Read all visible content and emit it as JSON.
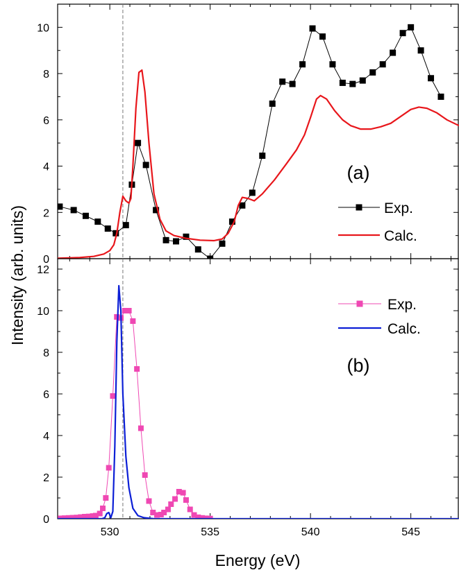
{
  "xlabel": "Energy (eV)",
  "ylabel": "Intensity (arb. units)",
  "chart_data": [
    {
      "type": "line",
      "panel_label": "(a)",
      "xlim": [
        527.4,
        547.4
      ],
      "ylim": [
        0,
        11
      ],
      "x_ticks": [
        530,
        535,
        540,
        545
      ],
      "y_ticks": [
        0,
        2,
        4,
        6,
        8,
        10
      ],
      "reference_line_x": 530.65,
      "legend_position": "right",
      "series": [
        {
          "name": "Exp.",
          "color": "#000000",
          "marker": "square",
          "points": [
            [
              527.5,
              2.25
            ],
            [
              528.2,
              2.1
            ],
            [
              528.8,
              1.85
            ],
            [
              529.4,
              1.6
            ],
            [
              529.9,
              1.3
            ],
            [
              530.3,
              1.1
            ],
            [
              530.8,
              1.45
            ],
            [
              531.1,
              3.2
            ],
            [
              531.4,
              5.0
            ],
            [
              531.8,
              4.05
            ],
            [
              532.3,
              2.1
            ],
            [
              532.8,
              0.8
            ],
            [
              533.3,
              0.75
            ],
            [
              533.8,
              0.95
            ],
            [
              534.4,
              0.4
            ],
            [
              535.0,
              0.0
            ],
            [
              535.6,
              0.65
            ],
            [
              536.1,
              1.6
            ],
            [
              536.6,
              2.3
            ],
            [
              537.1,
              2.85
            ],
            [
              537.6,
              4.45
            ],
            [
              538.1,
              6.7
            ],
            [
              538.6,
              7.65
            ],
            [
              539.1,
              7.55
            ],
            [
              539.6,
              8.4
            ],
            [
              540.1,
              9.95
            ],
            [
              540.6,
              9.6
            ],
            [
              541.1,
              8.4
            ],
            [
              541.6,
              7.6
            ],
            [
              542.1,
              7.55
            ],
            [
              542.6,
              7.7
            ],
            [
              543.1,
              8.05
            ],
            [
              543.6,
              8.4
            ],
            [
              544.1,
              8.9
            ],
            [
              544.6,
              9.75
            ],
            [
              545.0,
              10.0
            ],
            [
              545.5,
              9.0
            ],
            [
              546.0,
              7.8
            ],
            [
              546.5,
              7.0
            ]
          ]
        },
        {
          "name": "Calc.",
          "color": "#e8161b",
          "marker": "none",
          "points": [
            [
              527.4,
              0.02
            ],
            [
              528.5,
              0.05
            ],
            [
              529.2,
              0.1
            ],
            [
              529.7,
              0.2
            ],
            [
              530.0,
              0.35
            ],
            [
              530.2,
              0.6
            ],
            [
              530.35,
              1.1
            ],
            [
              530.5,
              2.0
            ],
            [
              530.65,
              2.7
            ],
            [
              530.8,
              2.5
            ],
            [
              530.95,
              2.4
            ],
            [
              531.05,
              2.6
            ],
            [
              531.15,
              4.0
            ],
            [
              531.3,
              6.5
            ],
            [
              531.45,
              8.05
            ],
            [
              531.6,
              8.15
            ],
            [
              531.75,
              7.2
            ],
            [
              531.95,
              5.0
            ],
            [
              532.2,
              2.8
            ],
            [
              532.5,
              1.7
            ],
            [
              532.8,
              1.2
            ],
            [
              533.2,
              1.0
            ],
            [
              533.8,
              0.88
            ],
            [
              534.5,
              0.8
            ],
            [
              535.2,
              0.78
            ],
            [
              535.6,
              0.85
            ],
            [
              535.9,
              1.1
            ],
            [
              536.2,
              1.6
            ],
            [
              536.4,
              2.3
            ],
            [
              536.6,
              2.65
            ],
            [
              536.9,
              2.6
            ],
            [
              537.2,
              2.5
            ],
            [
              537.6,
              2.8
            ],
            [
              538.2,
              3.4
            ],
            [
              538.8,
              4.1
            ],
            [
              539.3,
              4.7
            ],
            [
              539.7,
              5.35
            ],
            [
              540.0,
              6.1
            ],
            [
              540.3,
              6.9
            ],
            [
              540.5,
              7.05
            ],
            [
              540.8,
              6.9
            ],
            [
              541.2,
              6.4
            ],
            [
              541.6,
              6.0
            ],
            [
              542.0,
              5.75
            ],
            [
              542.5,
              5.6
            ],
            [
              543.0,
              5.6
            ],
            [
              543.5,
              5.7
            ],
            [
              544.0,
              5.85
            ],
            [
              544.5,
              6.15
            ],
            [
              545.0,
              6.45
            ],
            [
              545.4,
              6.55
            ],
            [
              545.8,
              6.5
            ],
            [
              546.3,
              6.3
            ],
            [
              546.8,
              6.0
            ],
            [
              547.4,
              5.75
            ]
          ]
        }
      ]
    },
    {
      "type": "line",
      "panel_label": "(b)",
      "xlim": [
        527.4,
        547.4
      ],
      "ylim": [
        0,
        12.5
      ],
      "x_ticks": [
        530,
        535,
        540,
        545
      ],
      "y_ticks": [
        0,
        2,
        4,
        6,
        8,
        10,
        12
      ],
      "reference_line_x": 530.65,
      "legend_position": "top-right",
      "series": [
        {
          "name": "Exp.",
          "color": "#ef48b3",
          "marker": "square",
          "points": [
            [
              527.55,
              0.02
            ],
            [
              527.75,
              0.03
            ],
            [
              527.95,
              0.04
            ],
            [
              528.15,
              0.05
            ],
            [
              528.35,
              0.06
            ],
            [
              528.55,
              0.08
            ],
            [
              528.75,
              0.1
            ],
            [
              528.95,
              0.11
            ],
            [
              529.15,
              0.13
            ],
            [
              529.3,
              0.15
            ],
            [
              529.5,
              0.25
            ],
            [
              529.65,
              0.5
            ],
            [
              529.8,
              1.0
            ],
            [
              529.95,
              2.45
            ],
            [
              530.15,
              5.9
            ],
            [
              530.35,
              9.7
            ],
            [
              530.55,
              9.65
            ],
            [
              530.75,
              10.0
            ],
            [
              530.95,
              10.0
            ],
            [
              531.15,
              9.5
            ],
            [
              531.35,
              7.2
            ],
            [
              531.55,
              4.35
            ],
            [
              531.75,
              2.1
            ],
            [
              531.95,
              0.85
            ],
            [
              532.15,
              0.3
            ],
            [
              532.35,
              0.18
            ],
            [
              532.55,
              0.2
            ],
            [
              532.7,
              0.3
            ],
            [
              532.9,
              0.45
            ],
            [
              533.05,
              0.7
            ],
            [
              533.25,
              0.95
            ],
            [
              533.45,
              1.3
            ],
            [
              533.65,
              1.25
            ],
            [
              533.8,
              0.9
            ],
            [
              534.0,
              0.45
            ],
            [
              534.2,
              0.18
            ],
            [
              534.4,
              0.07
            ],
            [
              534.6,
              0.04
            ],
            [
              534.8,
              0.02
            ],
            [
              535.0,
              0.01
            ]
          ]
        },
        {
          "name": "Calc.",
          "color": "#0c1fd6",
          "marker": "none",
          "points": [
            [
              527.4,
              0.0
            ],
            [
              529.6,
              0.0
            ],
            [
              529.75,
              0.05
            ],
            [
              529.85,
              0.25
            ],
            [
              529.95,
              0.3
            ],
            [
              530.05,
              0.05
            ],
            [
              530.15,
              0.35
            ],
            [
              530.25,
              3.5
            ],
            [
              530.35,
              8.5
            ],
            [
              530.45,
              11.2
            ],
            [
              530.55,
              10.0
            ],
            [
              530.65,
              6.0
            ],
            [
              530.8,
              3.0
            ],
            [
              530.95,
              1.5
            ],
            [
              531.15,
              0.5
            ],
            [
              531.4,
              0.15
            ],
            [
              531.7,
              0.05
            ],
            [
              532.2,
              0.0
            ],
            [
              547.4,
              0.0
            ]
          ]
        }
      ]
    }
  ]
}
